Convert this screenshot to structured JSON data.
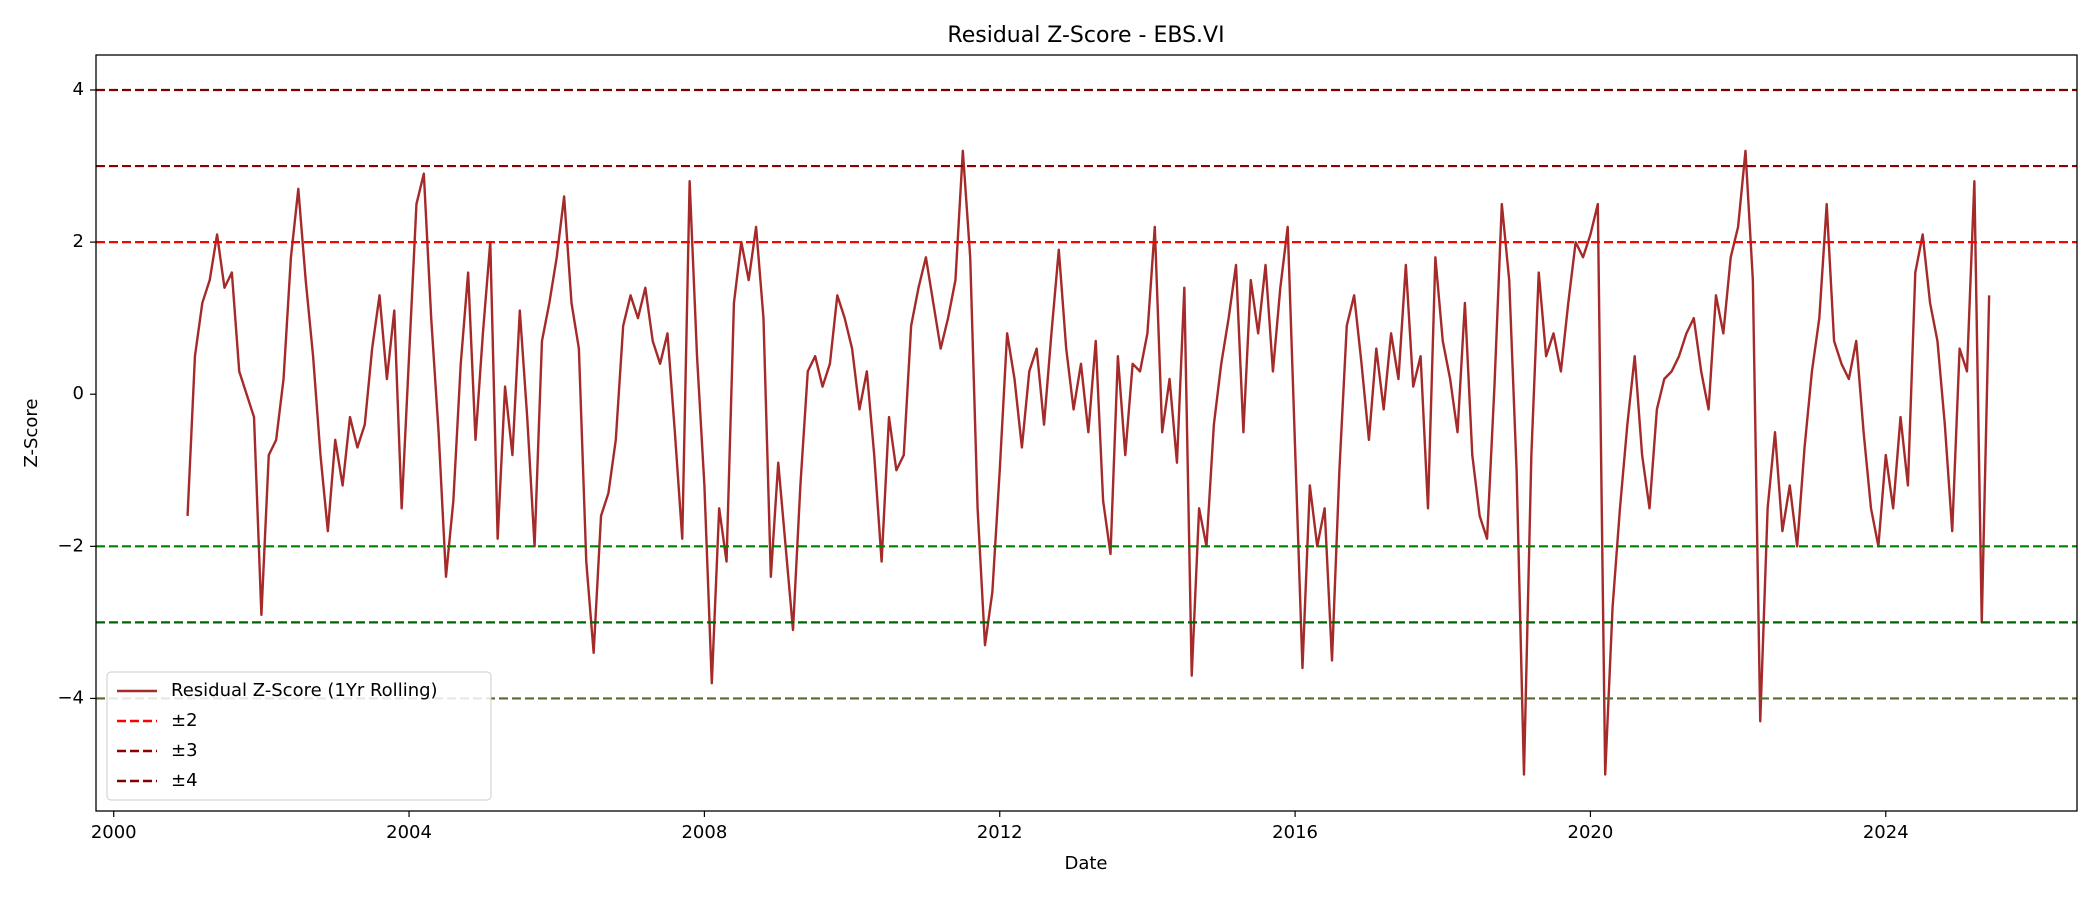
{
  "chart_data": {
    "type": "line",
    "title": "Residual Z-Score - EBS.VI",
    "xlabel": "Date",
    "ylabel": "Z-Score",
    "xlim": [
      1999.76,
      2026.59
    ],
    "ylim": [
      -5.48,
      4.46
    ],
    "xticks": [
      2000,
      2004,
      2008,
      2012,
      2016,
      2020,
      2024
    ],
    "yticks": [
      {
        "value": -4,
        "label": "−4"
      },
      {
        "value": -2,
        "label": "−2"
      },
      0,
      2,
      4
    ],
    "grid": false,
    "legend": "lower left",
    "x": [
      2001.0,
      2001.1,
      2001.2,
      2001.3,
      2001.4,
      2001.5,
      2001.6,
      2001.7,
      2001.8,
      2001.9,
      2002.0,
      2002.1,
      2002.2,
      2002.3,
      2002.4,
      2002.5,
      2002.6,
      2002.7,
      2002.8,
      2002.9,
      2003.0,
      2003.1,
      2003.2,
      2003.3,
      2003.4,
      2003.5,
      2003.6,
      2003.7,
      2003.8,
      2003.9,
      2004.0,
      2004.1,
      2004.2,
      2004.3,
      2004.4,
      2004.5,
      2004.6,
      2004.7,
      2004.8,
      2004.9,
      2005.0,
      2005.1,
      2005.2,
      2005.3,
      2005.4,
      2005.5,
      2005.6,
      2005.7,
      2005.8,
      2005.9,
      2006.0,
      2006.1,
      2006.2,
      2006.3,
      2006.4,
      2006.5,
      2006.6,
      2006.7,
      2006.8,
      2006.9,
      2007.0,
      2007.1,
      2007.2,
      2007.3,
      2007.4,
      2007.5,
      2007.6,
      2007.7,
      2007.8,
      2007.9,
      2008.0,
      2008.1,
      2008.2,
      2008.3,
      2008.4,
      2008.5,
      2008.6,
      2008.7,
      2008.8,
      2008.9,
      2009.0,
      2009.1,
      2009.2,
      2009.3,
      2009.4,
      2009.5,
      2009.6,
      2009.7,
      2009.8,
      2009.9,
      2010.0,
      2010.1,
      2010.2,
      2010.3,
      2010.4,
      2010.5,
      2010.6,
      2010.7,
      2010.8,
      2010.9,
      2011.0,
      2011.1,
      2011.2,
      2011.3,
      2011.4,
      2011.5,
      2011.6,
      2011.7,
      2011.8,
      2011.9,
      2012.0,
      2012.1,
      2012.2,
      2012.3,
      2012.4,
      2012.5,
      2012.6,
      2012.7,
      2012.8,
      2012.9,
      2013.0,
      2013.1,
      2013.2,
      2013.3,
      2013.4,
      2013.5,
      2013.6,
      2013.7,
      2013.8,
      2013.9,
      2014.0,
      2014.1,
      2014.2,
      2014.3,
      2014.4,
      2014.5,
      2014.6,
      2014.7,
      2014.8,
      2014.9,
      2015.0,
      2015.1,
      2015.2,
      2015.3,
      2015.4,
      2015.5,
      2015.6,
      2015.7,
      2015.8,
      2015.9,
      2016.0,
      2016.1,
      2016.2,
      2016.3,
      2016.4,
      2016.5,
      2016.6,
      2016.7,
      2016.8,
      2016.9,
      2017.0,
      2017.1,
      2017.2,
      2017.3,
      2017.4,
      2017.5,
      2017.6,
      2017.7,
      2017.8,
      2017.9,
      2018.0,
      2018.1,
      2018.2,
      2018.3,
      2018.4,
      2018.5,
      2018.6,
      2018.7,
      2018.8,
      2018.9,
      2019.0,
      2019.1,
      2019.2,
      2019.3,
      2019.4,
      2019.5,
      2019.6,
      2019.7,
      2019.8,
      2019.9,
      2020.0,
      2020.1,
      2020.2,
      2020.3,
      2020.4,
      2020.5,
      2020.6,
      2020.7,
      2020.8,
      2020.9,
      2021.0,
      2021.1,
      2021.2,
      2021.3,
      2021.4,
      2021.5,
      2021.6,
      2021.7,
      2021.8,
      2021.9,
      2022.0,
      2022.1,
      2022.2,
      2022.3,
      2022.4,
      2022.5,
      2022.6,
      2022.7,
      2022.8,
      2022.9,
      2023.0,
      2023.1,
      2023.2,
      2023.3,
      2023.4,
      2023.5,
      2023.6,
      2023.7,
      2023.8,
      2023.9,
      2024.0,
      2024.1,
      2024.2,
      2024.3,
      2024.4,
      2024.5,
      2024.6,
      2024.7,
      2024.8,
      2024.9,
      2025.0,
      2025.1,
      2025.2,
      2025.3,
      2025.4
    ],
    "series": [
      {
        "name": "Residual Z-Score (1Yr Rolling)",
        "color": "#a52a2a",
        "values": [
          -1.6,
          0.5,
          1.2,
          1.5,
          2.1,
          1.4,
          1.6,
          0.3,
          0,
          -0.3,
          -2.9,
          -0.8,
          -0.6,
          0.2,
          1.8,
          2.7,
          1.5,
          0.5,
          -0.8,
          -1.8,
          -0.6,
          -1.2,
          -0.3,
          -0.7,
          -0.4,
          0.6,
          1.3,
          0.2,
          1.1,
          -1.5,
          0.5,
          2.5,
          2.9,
          1.0,
          -0.5,
          -2.4,
          -1.4,
          0.4,
          1.6,
          -0.6,
          0.8,
          2.0,
          -1.9,
          0.1,
          -0.8,
          1.1,
          -0.3,
          -2.0,
          0.7,
          1.2,
          1.8,
          2.6,
          1.2,
          0.6,
          -2.2,
          -3.4,
          -1.6,
          -1.3,
          -0.6,
          0.9,
          1.3,
          1.0,
          1.4,
          0.7,
          0.4,
          0.8,
          -0.5,
          -1.9,
          2.8,
          0.5,
          -1.2,
          -3.8,
          -1.5,
          -2.2,
          1.2,
          2.0,
          1.5,
          2.2,
          1.0,
          -2.4,
          -0.9,
          -2.0,
          -3.1,
          -1.2,
          0.3,
          0.5,
          0.1,
          0.4,
          1.3,
          1.0,
          0.6,
          -0.2,
          0.3,
          -0.8,
          -2.2,
          -0.3,
          -1.0,
          -0.8,
          0.9,
          1.4,
          1.8,
          1.2,
          0.6,
          1.0,
          1.5,
          3.2,
          1.8,
          -1.5,
          -3.3,
          -2.6,
          -1.0,
          0.8,
          0.2,
          -0.7,
          0.3,
          0.6,
          -0.4,
          0.8,
          1.9,
          0.6,
          -0.2,
          0.4,
          -0.5,
          0.7,
          -1.4,
          -2.1,
          0.5,
          -0.8,
          0.4,
          0.3,
          0.8,
          2.2,
          -0.5,
          0.2,
          -0.9,
          1.4,
          -3.7,
          -1.5,
          -2.0,
          -0.4,
          0.4,
          1.0,
          1.7,
          -0.5,
          1.5,
          0.8,
          1.7,
          0.3,
          1.4,
          2.2,
          -0.7,
          -3.6,
          -1.2,
          -2.0,
          -1.5,
          -3.5,
          -1.0,
          0.9,
          1.3,
          0.4,
          -0.6,
          0.6,
          -0.2,
          0.8,
          0.2,
          1.7,
          0.1,
          0.5,
          -1.5,
          1.8,
          0.7,
          0.2,
          -0.5,
          1.2,
          -0.8,
          -1.6,
          -1.9,
          0.1,
          2.5,
          1.5,
          -1.0,
          -5.0,
          -0.8,
          1.6,
          0.5,
          0.8,
          0.3,
          1.2,
          2.0,
          1.8,
          2.1,
          2.5,
          -5.0,
          -2.8,
          -1.5,
          -0.4,
          0.5,
          -0.8,
          -1.5,
          -0.2,
          0.2,
          0.3,
          0.5,
          0.8,
          1.0,
          0.3,
          -0.2,
          1.3,
          0.8,
          1.8,
          2.2,
          3.2,
          1.5,
          -4.3,
          -1.5,
          -0.5,
          -1.8,
          -1.2,
          -2.0,
          -0.7,
          0.3,
          1.0,
          2.5,
          0.7,
          0.4,
          0.2,
          0.7,
          -0.5,
          -1.5,
          -2.0,
          -0.8,
          -1.5,
          -0.3,
          -1.2,
          1.6,
          2.1,
          1.2,
          0.7,
          -0.4,
          -1.8,
          0.6,
          0.3,
          2.8,
          -3.0,
          1.3
        ]
      }
    ],
    "reference_lines": [
      {
        "name": "±2",
        "values": [
          2,
          -2
        ],
        "colors": [
          "#ff0000",
          "#008000"
        ]
      },
      {
        "name": "±3",
        "values": [
          3,
          -3
        ],
        "colors": [
          "#8b0000",
          "#006400"
        ]
      },
      {
        "name": "±4",
        "values": [
          4,
          -4
        ],
        "colors": [
          "#800000",
          "#556b2f"
        ]
      }
    ]
  }
}
